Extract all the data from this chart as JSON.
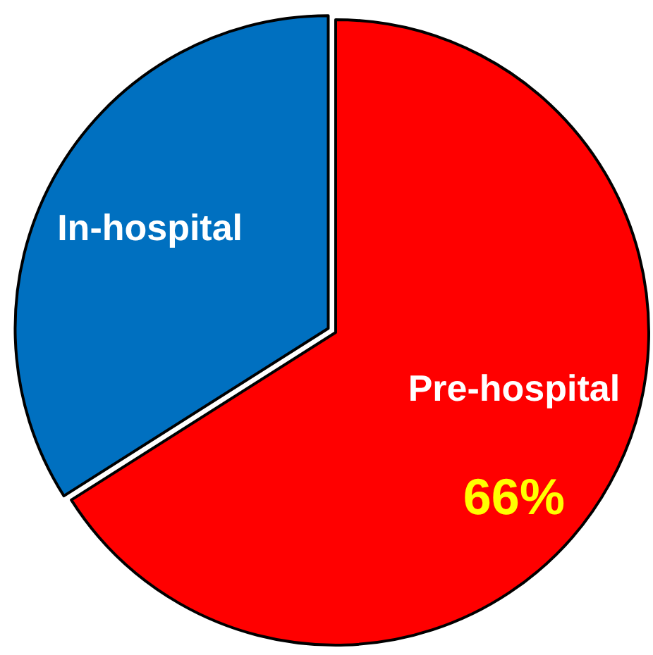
{
  "chart_data": {
    "type": "pie",
    "categories": [
      "Pre-hospital",
      "In-hospital"
    ],
    "values": [
      66,
      34
    ],
    "colors": [
      "#ff0000",
      "#0070c0"
    ],
    "value_labels": [
      "66%",
      null
    ]
  }
}
